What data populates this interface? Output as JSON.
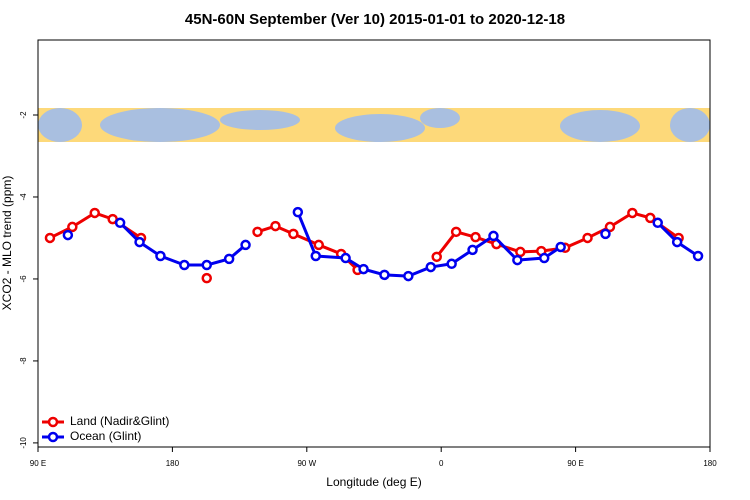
{
  "chart_data": {
    "type": "line",
    "title": "45N-60N September (Ver 10)   2015-01-01 to 2020-12-18",
    "x_label": "Longitude (deg E)",
    "y_label": "XCO2 - MLO trend (ppm)",
    "xlim": [
      90,
      540
    ],
    "xticks": [
      {
        "value": 90,
        "label": "90 E"
      },
      180,
      {
        "value": 270,
        "label": "90 W"
      },
      {
        "value": 360,
        "label": "0"
      },
      {
        "value": 450,
        "label": "90 E"
      },
      {
        "value": 540,
        "label": "180"
      }
    ],
    "ylim": [
      -10.1,
      -0.17
    ],
    "yticks": [
      -10,
      -8,
      -6,
      -4,
      -2
    ],
    "legend": "bottom-left",
    "series": [
      {
        "name": "Land (Nadir&Glint)",
        "color": "#ee0000",
        "x": [
          98,
          113,
          128,
          140,
          159,
          null,
          203,
          null,
          237,
          249,
          261,
          278,
          293,
          304,
          null,
          357,
          370,
          383,
          397,
          413,
          427,
          443,
          458,
          473,
          488,
          500,
          519
        ],
        "values": [
          -5.0,
          -4.73,
          -4.39,
          -4.54,
          -5.0,
          null,
          -5.98,
          null,
          -4.85,
          -4.71,
          -4.9,
          -5.17,
          -5.39,
          -5.78,
          null,
          -5.46,
          -4.85,
          -4.98,
          -5.15,
          -5.34,
          -5.32,
          -5.24,
          -5.0,
          -4.73,
          -4.39,
          -4.51,
          -5.0
        ]
      },
      {
        "name": "Ocean (Glint)",
        "color": "#0000ee",
        "x": [
          110,
          null,
          145,
          158,
          172,
          188,
          203,
          218,
          229,
          null,
          264,
          276,
          296,
          308,
          322,
          338,
          353,
          367,
          381,
          395,
          411,
          429,
          440,
          null,
          470,
          null,
          505,
          518,
          532
        ],
        "values": [
          -4.93,
          null,
          -4.63,
          -5.1,
          -5.44,
          -5.66,
          -5.66,
          -5.51,
          -5.17,
          null,
          -4.37,
          -5.44,
          -5.49,
          -5.76,
          -5.9,
          -5.93,
          -5.71,
          -5.63,
          -5.29,
          -4.95,
          -5.54,
          -5.49,
          -5.22,
          null,
          -4.9,
          null,
          -4.63,
          -5.1,
          -5.44
        ]
      }
    ]
  }
}
